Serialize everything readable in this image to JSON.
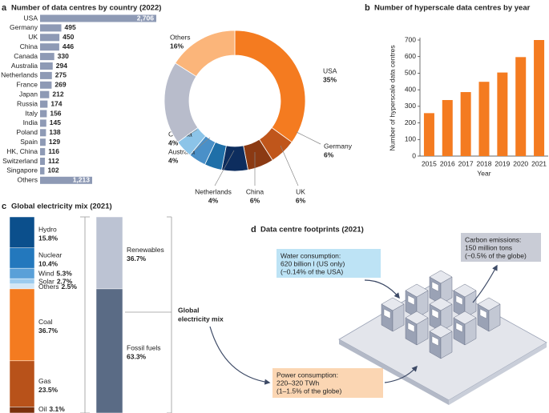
{
  "chart_data": [
    {
      "panel": "a",
      "type": "hbar",
      "title": "Number of data centres by country (2022)",
      "categories": [
        "USA",
        "Germany",
        "UK",
        "China",
        "Canada",
        "Australia",
        "Netherlands",
        "France",
        "Japan",
        "Russia",
        "Italy",
        "India",
        "Poland",
        "Spain",
        "HK, China",
        "Switzerland",
        "Singapore",
        "Others"
      ],
      "values": [
        2706,
        495,
        450,
        446,
        330,
        294,
        275,
        269,
        212,
        174,
        156,
        145,
        138,
        129,
        116,
        112,
        102,
        1213
      ],
      "value_labels": [
        "2,706",
        "495",
        "450",
        "446",
        "330",
        "294",
        "275",
        "269",
        "212",
        "174",
        "156",
        "145",
        "138",
        "129",
        "116",
        "112",
        "102",
        "1,213"
      ],
      "color": "#8e9ab5"
    },
    {
      "type": "donut",
      "categories": [
        "USA",
        "Germany",
        "UK",
        "China",
        "Netherlands",
        "Australia",
        "Canada",
        null,
        "Others"
      ],
      "values": [
        35,
        6,
        6,
        6,
        4,
        4,
        4,
        19,
        16
      ],
      "value_labels": [
        "35%",
        "6%",
        "6%",
        "6%",
        "4%",
        "4%",
        "4%",
        null,
        "16%"
      ],
      "colors": [
        "#f47b20",
        "#c0561b",
        "#8b3a13",
        "#0d2d5e",
        "#1f6fa8",
        "#4a90c8",
        "#8cc4e8",
        "#b8bccb",
        "#fbb57a"
      ]
    },
    {
      "panel": "b",
      "type": "bar",
      "title": "Number of hyperscale data centres by year",
      "categories": [
        "2015",
        "2016",
        "2017",
        "2018",
        "2019",
        "2020",
        "2021"
      ],
      "values": [
        259,
        338,
        386,
        448,
        504,
        597,
        700
      ],
      "ylim": [
        0,
        700
      ],
      "yticks": [
        0,
        100,
        200,
        300,
        400,
        500,
        600,
        700
      ],
      "ylabel": "Number of hyperscale data centres",
      "xlabel": "Year",
      "color": "#f47b20"
    },
    {
      "panel": "c",
      "type": "stacked_bar",
      "title": "Global electricity mix (2021)",
      "annotation": [
        "Global",
        "electricity mix"
      ],
      "stacks": [
        {
          "segments": [
            {
              "name": "Hydro",
              "value": 15.8,
              "value_label": "15.8%",
              "color": "#0b4f8c"
            },
            {
              "name": "Nuclear",
              "value": 10.4,
              "value_label": "10.4%",
              "color": "#2378bd"
            },
            {
              "name": "Wind",
              "value": 5.3,
              "value_label": "5.3%",
              "color": "#5aa0d8"
            },
            {
              "name": "Solar",
              "value": 2.7,
              "value_label": "2.7%",
              "color": "#9ccbee"
            },
            {
              "name": "Others",
              "value": 2.5,
              "value_label": "2.5%",
              "color": "#d3e6f5"
            },
            {
              "name": "Coal",
              "value": 36.7,
              "value_label": "36.7%",
              "color": "#f47b20"
            },
            {
              "name": "Gas",
              "value": 23.5,
              "value_label": "23.5%",
              "color": "#b8521a"
            },
            {
              "name": "Oil",
              "value": 3.1,
              "value_label": "3.1%",
              "color": "#7a300c"
            }
          ]
        },
        {
          "segments": [
            {
              "name": "Renewables",
              "value": 36.7,
              "value_label": "36.7%",
              "color": "#bcc3d3"
            },
            {
              "name": "Fossil fuels",
              "value": 63.3,
              "value_label": "63.3%",
              "color": "#5a6b85"
            }
          ]
        }
      ]
    }
  ],
  "footprints": {
    "panel": "d",
    "title": "Data centre footprints (2021)",
    "water": [
      "Water consumption:",
      "620 billion l (US only)",
      "(~0.14% of the USA)"
    ],
    "carbon": [
      "Carbon emissions:",
      "150 million tons",
      "(~0.5% of the globe)"
    ],
    "power": [
      "Power consumption:",
      "220–320 TWh",
      "(1–1.5% of the globe)"
    ]
  }
}
